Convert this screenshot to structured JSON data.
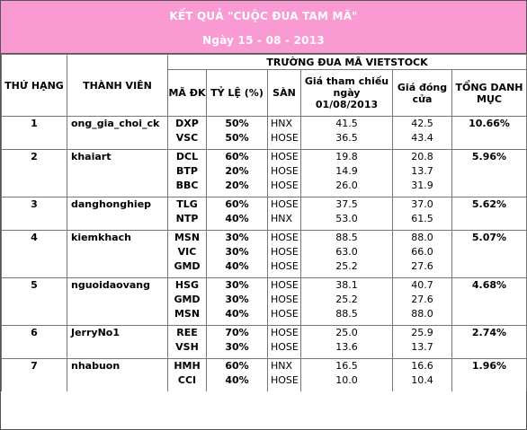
{
  "title_line1": "KẾT QUẢ \"CUỘC ĐUA TAM MÃ\"",
  "title_line2": "Ngày 15 - 08 - 2013",
  "headers": {
    "rank": "THỨ HẠNG",
    "member": "THÀNH VIÊN",
    "track": "TRƯỜNG ĐUA MÃ VIETSTOCK",
    "code": "MÃ ĐK",
    "ratio": "TỶ LỆ (%)",
    "exchange": "SÀN",
    "ref_price": "Giá tham chiếu ngày 01/08/2013",
    "close_price": "Giá đóng cửa",
    "total": "TỔNG DANH MỤC"
  },
  "entries": [
    {
      "rank": "1",
      "member": "ong_gia_choi_ck",
      "total": "10.66%",
      "stocks": [
        {
          "code": "DXP",
          "ratio": "50%",
          "exchange": "HNX",
          "ref": "41.5",
          "close": "42.5"
        },
        {
          "code": "VSC",
          "ratio": "50%",
          "exchange": "HOSE",
          "ref": "36.5",
          "close": "43.4"
        }
      ]
    },
    {
      "rank": "2",
      "member": "khaiart",
      "total": "5.96%",
      "stocks": [
        {
          "code": "DCL",
          "ratio": "60%",
          "exchange": "HOSE",
          "ref": "19.8",
          "close": "20.8"
        },
        {
          "code": "BTP",
          "ratio": "20%",
          "exchange": "HOSE",
          "ref": "14.9",
          "close": "13.7"
        },
        {
          "code": "BBC",
          "ratio": "20%",
          "exchange": "HOSE",
          "ref": "26.0",
          "close": "31.9"
        }
      ]
    },
    {
      "rank": "3",
      "member": "danghonghiep",
      "total": "5.62%",
      "stocks": [
        {
          "code": "TLG",
          "ratio": "60%",
          "exchange": "HOSE",
          "ref": "37.5",
          "close": "37.0"
        },
        {
          "code": "NTP",
          "ratio": "40%",
          "exchange": "HNX",
          "ref": "53.0",
          "close": "61.5"
        }
      ]
    },
    {
      "rank": "4",
      "member": "kiemkhach",
      "total": "5.07%",
      "stocks": [
        {
          "code": "MSN",
          "ratio": "30%",
          "exchange": "HOSE",
          "ref": "88.5",
          "close": "88.0"
        },
        {
          "code": "VIC",
          "ratio": "30%",
          "exchange": "HOSE",
          "ref": "63.0",
          "close": "66.0"
        },
        {
          "code": "GMD",
          "ratio": "40%",
          "exchange": "HOSE",
          "ref": "25.2",
          "close": "27.6"
        }
      ]
    },
    {
      "rank": "5",
      "member": "nguoidaovang",
      "total": "4.68%",
      "stocks": [
        {
          "code": "HSG",
          "ratio": "30%",
          "exchange": "HOSE",
          "ref": "38.1",
          "close": "40.7"
        },
        {
          "code": "GMD",
          "ratio": "30%",
          "exchange": "HOSE",
          "ref": "25.2",
          "close": "27.6"
        },
        {
          "code": "MSN",
          "ratio": "40%",
          "exchange": "HOSE",
          "ref": "88.5",
          "close": "88.0"
        }
      ]
    },
    {
      "rank": "6",
      "member": "JerryNo1",
      "total": "2.74%",
      "stocks": [
        {
          "code": "REE",
          "ratio": "70%",
          "exchange": "HOSE",
          "ref": "25.0",
          "close": "25.9"
        },
        {
          "code": "VSH",
          "ratio": "30%",
          "exchange": "HOSE",
          "ref": "13.6",
          "close": "13.7"
        }
      ]
    },
    {
      "rank": "7",
      "member": "nhabuon",
      "total": "1.96%",
      "stocks": [
        {
          "code": "HMH",
          "ratio": "60%",
          "exchange": "HNX",
          "ref": "16.5",
          "close": "16.6"
        },
        {
          "code": "CCI",
          "ratio": "40%",
          "exchange": "HOSE",
          "ref": "10.0",
          "close": "10.4"
        }
      ]
    }
  ]
}
